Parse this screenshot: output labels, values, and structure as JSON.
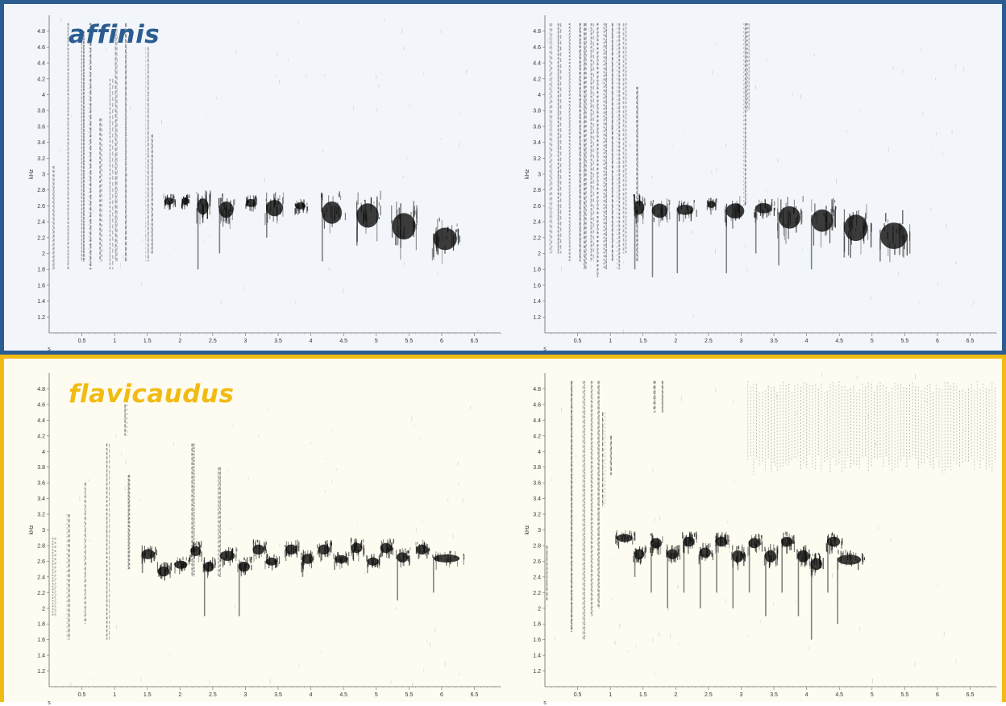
{
  "panels": [
    {
      "species": "affinis",
      "color": "#2b5d91",
      "background": "#f2f6fa"
    },
    {
      "species": "flavicaudus",
      "color": "#f2bb14",
      "background": "#fefcf1"
    }
  ],
  "chart_data": [
    {
      "type": "heatmap",
      "panel": "affinis",
      "title": "",
      "xlabel": "s",
      "ylabel": "kHz",
      "xlim": [
        0,
        6.9
      ],
      "ylim": [
        1.0,
        5.0
      ],
      "xticks": [
        "0.5",
        "1",
        "1.5",
        "2",
        "2.5",
        "3",
        "3.5",
        "4",
        "4.5",
        "5",
        "5.5",
        "6",
        "6.5"
      ],
      "yticks": [
        "1.2",
        "1.4",
        "1.6",
        "1.8",
        "2",
        "2.2",
        "2.4",
        "2.6",
        "2.8",
        "3",
        "3.2",
        "3.4",
        "3.6",
        "3.8",
        "4",
        "4.2",
        "4.4",
        "4.6",
        "4.8"
      ],
      "streaks": [
        [
          0.08,
          1.8,
          3.1
        ],
        [
          0.28,
          1.8,
          4.9
        ],
        [
          0.52,
          1.9,
          4.8
        ],
        [
          0.62,
          1.8,
          4.9
        ],
        [
          0.78,
          1.9,
          3.7
        ],
        [
          0.95,
          1.8,
          4.2
        ],
        [
          1.02,
          1.9,
          4.9
        ],
        [
          1.18,
          1.9,
          4.9
        ],
        [
          1.5,
          1.9,
          4.6
        ],
        [
          1.58,
          2.0,
          3.5
        ]
      ],
      "notes": [
        {
          "t": 1.75,
          "dur": 0.18,
          "f": 2.68,
          "bw": 0.07,
          "tail": 2.6
        },
        {
          "t": 2.02,
          "dur": 0.14,
          "f": 2.68,
          "bw": 0.07,
          "tail": 2.6
        },
        {
          "t": 2.25,
          "dur": 0.22,
          "f": 2.64,
          "bw": 0.16,
          "tail": 1.8
        },
        {
          "t": 2.58,
          "dur": 0.28,
          "f": 2.6,
          "bw": 0.16,
          "tail": 2.0
        },
        {
          "t": 3.0,
          "dur": 0.18,
          "f": 2.66,
          "bw": 0.08,
          "tail": 2.6
        },
        {
          "t": 3.3,
          "dur": 0.32,
          "f": 2.62,
          "bw": 0.16,
          "tail": 2.2
        },
        {
          "t": 3.75,
          "dur": 0.2,
          "f": 2.62,
          "bw": 0.07,
          "tail": 2.5
        },
        {
          "t": 4.15,
          "dur": 0.38,
          "f": 2.58,
          "bw": 0.22,
          "tail": 1.9
        },
        {
          "t": 4.68,
          "dur": 0.42,
          "f": 2.55,
          "bw": 0.24,
          "tail": 2.1
        },
        {
          "t": 5.22,
          "dur": 0.45,
          "f": 2.42,
          "bw": 0.26,
          "tail": 2.2
        },
        {
          "t": 5.85,
          "dur": 0.45,
          "f": 2.25,
          "bw": 0.22,
          "tail": 1.95
        }
      ]
    },
    {
      "type": "heatmap",
      "panel": "affinis",
      "title": "",
      "xlabel": "s",
      "ylabel": "kHz",
      "xlim": [
        0,
        6.9
      ],
      "ylim": [
        1.0,
        5.0
      ],
      "xticks": [
        "0.5",
        "1",
        "1.5",
        "2",
        "2.5",
        "3",
        "3.5",
        "4",
        "4.5",
        "5",
        "5.5",
        "6",
        "6.5"
      ],
      "yticks": [
        "1.2",
        "1.4",
        "1.6",
        "1.8",
        "2",
        "2.2",
        "2.4",
        "2.6",
        "2.8",
        "3",
        "3.2",
        "3.4",
        "3.6",
        "3.8",
        "4",
        "4.2",
        "4.4",
        "4.6",
        "4.8"
      ],
      "streaks": [
        [
          0.1,
          2.0,
          4.9
        ],
        [
          0.22,
          2.0,
          4.9
        ],
        [
          0.38,
          1.9,
          4.9
        ],
        [
          0.52,
          1.9,
          4.9
        ],
        [
          0.62,
          1.8,
          4.9
        ],
        [
          0.72,
          1.9,
          4.9
        ],
        [
          0.82,
          1.7,
          4.9
        ],
        [
          0.92,
          1.8,
          4.9
        ],
        [
          1.02,
          1.9,
          4.9
        ],
        [
          1.12,
          1.8,
          4.9
        ],
        [
          1.22,
          2.0,
          4.9
        ],
        [
          1.42,
          1.9,
          4.1
        ],
        [
          3.05,
          2.6,
          4.9
        ],
        [
          3.1,
          3.8,
          4.9
        ]
      ],
      "notes": [
        {
          "t": 1.35,
          "dur": 0.2,
          "f": 2.62,
          "bw": 0.14,
          "tail": 1.8
        },
        {
          "t": 1.62,
          "dur": 0.3,
          "f": 2.58,
          "bw": 0.14,
          "tail": 1.7
        },
        {
          "t": 2.0,
          "dur": 0.32,
          "f": 2.58,
          "bw": 0.1,
          "tail": 1.75
        },
        {
          "t": 2.48,
          "dur": 0.15,
          "f": 2.64,
          "bw": 0.07,
          "tail": 2.6
        },
        {
          "t": 2.75,
          "dur": 0.35,
          "f": 2.58,
          "bw": 0.15,
          "tail": 1.75
        },
        {
          "t": 3.2,
          "dur": 0.32,
          "f": 2.6,
          "bw": 0.1,
          "tail": 2.0
        },
        {
          "t": 3.55,
          "dur": 0.42,
          "f": 2.52,
          "bw": 0.22,
          "tail": 1.85
        },
        {
          "t": 4.05,
          "dur": 0.42,
          "f": 2.48,
          "bw": 0.22,
          "tail": 1.8
        },
        {
          "t": 4.55,
          "dur": 0.45,
          "f": 2.4,
          "bw": 0.26,
          "tail": 1.95
        },
        {
          "t": 5.1,
          "dur": 0.52,
          "f": 2.3,
          "bw": 0.26,
          "tail": 1.9
        }
      ]
    },
    {
      "type": "heatmap",
      "panel": "flavicaudus",
      "title": "",
      "xlabel": "s",
      "ylabel": "kHz",
      "xlim": [
        0,
        6.9
      ],
      "ylim": [
        1.0,
        5.0
      ],
      "xticks": [
        "0.5",
        "1",
        "1.5",
        "2",
        "2.5",
        "3",
        "3.5",
        "4",
        "4.5",
        "5",
        "5.5",
        "6",
        "6.5"
      ],
      "yticks": [
        "1.2",
        "1.4",
        "1.6",
        "1.8",
        "2",
        "2.2",
        "2.4",
        "2.6",
        "2.8",
        "3",
        "3.2",
        "3.4",
        "3.6",
        "3.8",
        "4",
        "4.2",
        "4.4",
        "4.6",
        "4.8"
      ],
      "streaks": [
        [
          0.08,
          1.9,
          2.9
        ],
        [
          0.3,
          1.6,
          3.2
        ],
        [
          0.55,
          1.8,
          3.6
        ],
        [
          0.9,
          1.6,
          4.1
        ],
        [
          1.22,
          2.5,
          3.7
        ],
        [
          1.18,
          4.2,
          4.6
        ],
        [
          2.2,
          2.4,
          4.1
        ],
        [
          2.6,
          2.4,
          3.8
        ]
      ],
      "notes": [
        {
          "t": 1.4,
          "dur": 0.25,
          "f": 2.72,
          "bw": 0.1,
          "tail": 2.45
        },
        {
          "t": 1.65,
          "dur": 0.22,
          "f": 2.5,
          "bw": 0.1,
          "tail": 2.4
        },
        {
          "t": 1.9,
          "dur": 0.25,
          "f": 2.58,
          "bw": 0.08,
          "tail": 2.55
        },
        {
          "t": 2.15,
          "dur": 0.2,
          "f": 2.76,
          "bw": 0.1,
          "tail": 2.65
        },
        {
          "t": 2.35,
          "dur": 0.2,
          "f": 2.56,
          "bw": 0.1,
          "tail": 1.9
        },
        {
          "t": 2.6,
          "dur": 0.28,
          "f": 2.7,
          "bw": 0.1,
          "tail": 2.6
        },
        {
          "t": 2.88,
          "dur": 0.22,
          "f": 2.56,
          "bw": 0.1,
          "tail": 1.9
        },
        {
          "t": 3.1,
          "dur": 0.22,
          "f": 2.78,
          "bw": 0.1,
          "tail": 2.7
        },
        {
          "t": 3.3,
          "dur": 0.22,
          "f": 2.62,
          "bw": 0.08,
          "tail": 2.6
        },
        {
          "t": 3.6,
          "dur": 0.22,
          "f": 2.78,
          "bw": 0.1,
          "tail": 2.7
        },
        {
          "t": 3.85,
          "dur": 0.22,
          "f": 2.66,
          "bw": 0.1,
          "tail": 2.4
        },
        {
          "t": 4.1,
          "dur": 0.22,
          "f": 2.78,
          "bw": 0.1,
          "tail": 2.7
        },
        {
          "t": 4.35,
          "dur": 0.25,
          "f": 2.65,
          "bw": 0.08,
          "tail": 2.6
        },
        {
          "t": 4.6,
          "dur": 0.22,
          "f": 2.8,
          "bw": 0.1,
          "tail": 2.7
        },
        {
          "t": 4.85,
          "dur": 0.22,
          "f": 2.62,
          "bw": 0.08,
          "tail": 2.6
        },
        {
          "t": 5.05,
          "dur": 0.22,
          "f": 2.8,
          "bw": 0.1,
          "tail": 2.7
        },
        {
          "t": 5.3,
          "dur": 0.22,
          "f": 2.68,
          "bw": 0.1,
          "tail": 2.1
        },
        {
          "t": 5.6,
          "dur": 0.22,
          "f": 2.78,
          "bw": 0.1,
          "tail": 2.7
        },
        {
          "t": 5.85,
          "dur": 0.5,
          "f": 2.66,
          "bw": 0.08,
          "tail": 2.2
        }
      ]
    },
    {
      "type": "heatmap",
      "panel": "flavicaudus",
      "title": "",
      "xlabel": "s",
      "ylabel": "kHz",
      "xlim": [
        0,
        6.9
      ],
      "ylim": [
        1.0,
        5.0
      ],
      "xticks": [
        "0.5",
        "1",
        "1.5",
        "2",
        "2.5",
        "3",
        "3.5",
        "4",
        "4.5",
        "5",
        "5.5",
        "6",
        "6.5"
      ],
      "yticks": [
        "1.2",
        "1.4",
        "1.6",
        "1.8",
        "2",
        "2.2",
        "2.4",
        "2.6",
        "2.8",
        "3",
        "3.2",
        "3.4",
        "3.6",
        "3.8",
        "4",
        "4.2",
        "4.4",
        "4.6",
        "4.8"
      ],
      "streaks": [
        [
          0.05,
          2.1,
          2.8
        ],
        [
          0.4,
          1.7,
          4.9
        ],
        [
          0.6,
          1.6,
          4.9
        ],
        [
          0.72,
          1.9,
          4.9
        ],
        [
          0.82,
          2.0,
          4.9
        ],
        [
          0.9,
          3.3,
          4.5
        ],
        [
          1.02,
          3.7,
          4.2
        ],
        [
          1.68,
          4.5,
          4.9
        ],
        [
          1.8,
          4.5,
          4.9
        ]
      ],
      "noise_band": {
        "t0": 3.1,
        "t1": 6.9,
        "f0": 3.7,
        "f1": 4.9
      },
      "notes": [
        {
          "t": 1.08,
          "dur": 0.3,
          "f": 2.92,
          "bw": 0.08,
          "tail": 2.8
        },
        {
          "t": 1.35,
          "dur": 0.2,
          "f": 2.72,
          "bw": 0.1,
          "tail": 2.4
        },
        {
          "t": 1.6,
          "dur": 0.22,
          "f": 2.86,
          "bw": 0.1,
          "tail": 2.2
        },
        {
          "t": 1.85,
          "dur": 0.22,
          "f": 2.72,
          "bw": 0.1,
          "tail": 2.0
        },
        {
          "t": 2.1,
          "dur": 0.22,
          "f": 2.88,
          "bw": 0.1,
          "tail": 2.2
        },
        {
          "t": 2.35,
          "dur": 0.22,
          "f": 2.74,
          "bw": 0.1,
          "tail": 2.0
        },
        {
          "t": 2.6,
          "dur": 0.22,
          "f": 2.88,
          "bw": 0.1,
          "tail": 2.2
        },
        {
          "t": 2.85,
          "dur": 0.22,
          "f": 2.7,
          "bw": 0.12,
          "tail": 2.0
        },
        {
          "t": 3.1,
          "dur": 0.22,
          "f": 2.86,
          "bw": 0.1,
          "tail": 2.2
        },
        {
          "t": 3.35,
          "dur": 0.22,
          "f": 2.7,
          "bw": 0.12,
          "tail": 1.9
        },
        {
          "t": 3.6,
          "dur": 0.22,
          "f": 2.88,
          "bw": 0.1,
          "tail": 2.2
        },
        {
          "t": 3.85,
          "dur": 0.22,
          "f": 2.7,
          "bw": 0.12,
          "tail": 1.9
        },
        {
          "t": 4.05,
          "dur": 0.22,
          "f": 2.6,
          "bw": 0.12,
          "tail": 1.6
        },
        {
          "t": 4.3,
          "dur": 0.25,
          "f": 2.88,
          "bw": 0.1,
          "tail": 2.2
        },
        {
          "t": 4.45,
          "dur": 0.45,
          "f": 2.65,
          "bw": 0.1,
          "tail": 1.8
        }
      ]
    }
  ]
}
